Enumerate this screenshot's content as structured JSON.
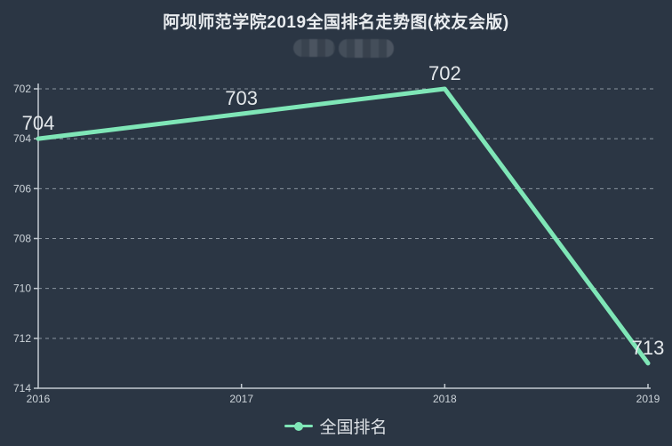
{
  "page": {
    "background_color": "#2b3644"
  },
  "header": {
    "title": "阿坝师范学院2019全国排名走势图(校友会版)"
  },
  "chart_data": {
    "type": "line",
    "title": "阿坝师范学院2019全国排名走势图(校友会版)",
    "categories": [
      "2016",
      "2017",
      "2018",
      "2019"
    ],
    "series": [
      {
        "name": "全国排名",
        "values": [
          704,
          703,
          702,
          713
        ],
        "data_labels": [
          "704",
          "703",
          "702",
          "713"
        ],
        "color": "#7fe6b7"
      }
    ],
    "xlabel": "",
    "ylabel": "",
    "y_axis": {
      "ticks": [
        702,
        704,
        706,
        708,
        710,
        712,
        714
      ],
      "range": [
        702,
        714
      ],
      "inverted": true
    },
    "x_axis": {
      "ticks": [
        "2016",
        "2017",
        "2018",
        "2019"
      ]
    },
    "grid": "dashed-horizontal",
    "legend": {
      "position": "bottom",
      "entries": [
        "全国排名"
      ]
    }
  },
  "colors": {
    "accent_line": "#7fe6b7",
    "axis": "#c3cad1",
    "grid": "#8b95a0",
    "title": "#e9ecef",
    "tick_label": "#ccd3d9",
    "data_label": "#e4e8eb",
    "legend_text": "#dce0e5"
  }
}
